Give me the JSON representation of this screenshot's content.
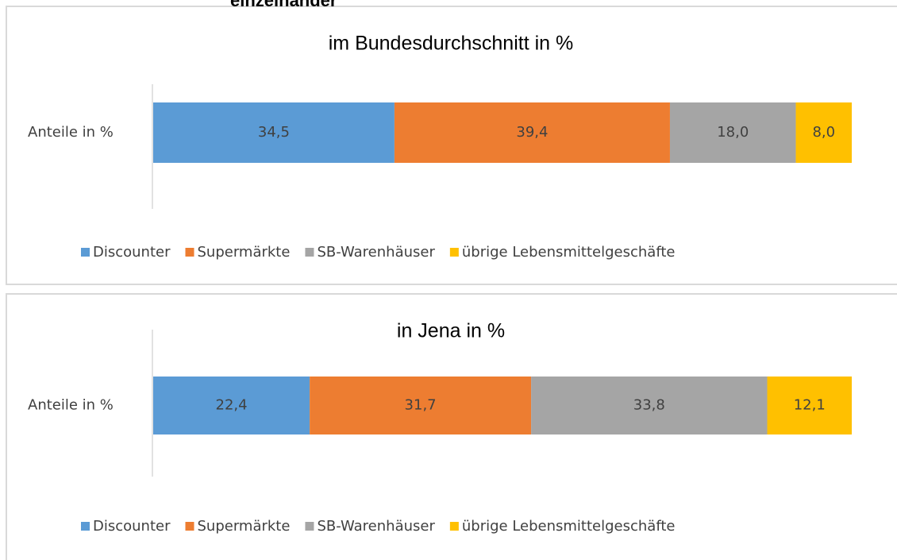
{
  "heading": "einzelnander",
  "chart_data": [
    {
      "type": "bar",
      "title": "im Bundesdurchschnitt  in %",
      "categories": [
        "Anteile in %"
      ],
      "series": [
        {
          "name": "Discounter",
          "color": "#5b9bd5",
          "values": [
            34.5
          ],
          "value_labels": [
            "34,5"
          ]
        },
        {
          "name": "Supermärkte",
          "color": "#ed7d31",
          "values": [
            39.4
          ],
          "value_labels": [
            "39,4"
          ]
        },
        {
          "name": "SB-Warenhäuser",
          "color": "#a5a5a5",
          "values": [
            18.0
          ],
          "value_labels": [
            "18,0"
          ]
        },
        {
          "name": "übrige Lebensmittelgeschäfte",
          "color": "#ffc000",
          "values": [
            8.0
          ],
          "value_labels": [
            "8,0"
          ]
        }
      ]
    },
    {
      "type": "bar",
      "title": "in Jena in %",
      "categories": [
        "Anteile in %"
      ],
      "series": [
        {
          "name": "Discounter",
          "color": "#5b9bd5",
          "values": [
            22.4
          ],
          "value_labels": [
            "22,4"
          ]
        },
        {
          "name": "Supermärkte",
          "color": "#ed7d31",
          "values": [
            31.7
          ],
          "value_labels": [
            "31,7"
          ]
        },
        {
          "name": "SB-Warenhäuser",
          "color": "#a5a5a5",
          "values": [
            33.8
          ],
          "value_labels": [
            "33,8"
          ]
        },
        {
          "name": "übrige Lebensmittelgeschäfte",
          "color": "#ffc000",
          "values": [
            12.1
          ],
          "value_labels": [
            "12,1"
          ]
        }
      ]
    }
  ]
}
